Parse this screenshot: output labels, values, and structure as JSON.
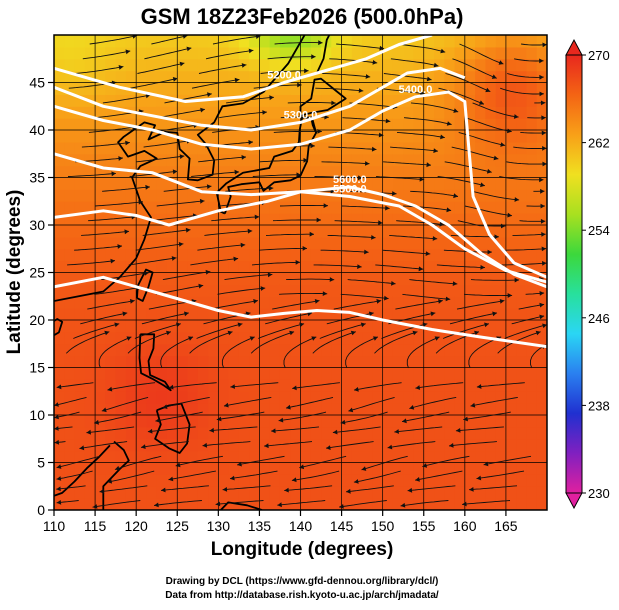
{
  "chart_data": {
    "type": "heatmap",
    "title": "GSM 18Z23Feb2026 (500.0hPa)",
    "xlabel": "Longitude (degrees)",
    "ylabel": "Latitude (degrees)",
    "xlim": [
      110,
      170
    ],
    "ylim": [
      0,
      50
    ],
    "x_ticks": [
      "110",
      "115",
      "120",
      "125",
      "130",
      "135",
      "140",
      "145",
      "150",
      "155",
      "160",
      "165"
    ],
    "y_ticks": [
      "0",
      "5",
      "10",
      "15",
      "20",
      "25",
      "30",
      "35",
      "40",
      "45"
    ],
    "x_tick_values": [
      110,
      115,
      120,
      125,
      130,
      135,
      140,
      145,
      150,
      155,
      160,
      165
    ],
    "y_tick_values": [
      0,
      5,
      10,
      15,
      20,
      25,
      30,
      35,
      40,
      45
    ],
    "colorbar": {
      "label_values": [
        "270",
        "262",
        "254",
        "246",
        "238",
        "230"
      ],
      "values": [
        270,
        262,
        254,
        246,
        238,
        230
      ],
      "min": 230,
      "max": 270,
      "colors": [
        "#e0209f",
        "#8020c0",
        "#2030d0",
        "#2a80f0",
        "#2ad6f4",
        "#28e09c",
        "#3cd83c",
        "#a8e020",
        "#f0e020",
        "#f8a018",
        "#f46414",
        "#e8281e"
      ]
    },
    "contours": [
      {
        "label": "5200.0",
        "points": [
          [
            110,
            46.5
          ],
          [
            118,
            44.5
          ],
          [
            126,
            43
          ],
          [
            133,
            43.5
          ],
          [
            138,
            45
          ],
          [
            144,
            46.5
          ],
          [
            148,
            47.5
          ],
          [
            152,
            49
          ],
          [
            156,
            50
          ]
        ]
      },
      {
        "label": "5300.0",
        "points": [
          [
            110,
            44.5
          ],
          [
            116,
            42.5
          ],
          [
            122,
            41.5
          ],
          [
            128,
            40.5
          ],
          [
            134,
            40
          ],
          [
            140,
            40.8
          ],
          [
            146,
            42.5
          ],
          [
            150,
            44.5
          ],
          [
            153,
            46
          ],
          [
            157,
            46.5
          ],
          [
            160,
            45.5
          ]
        ]
      },
      {
        "label": "5400.0",
        "points": [
          [
            110,
            42.5
          ],
          [
            116,
            41
          ],
          [
            122,
            40
          ],
          [
            128,
            38.5
          ],
          [
            134,
            38
          ],
          [
            140,
            38.5
          ],
          [
            146,
            40
          ],
          [
            150,
            42
          ],
          [
            154,
            43.5
          ],
          [
            158,
            44
          ],
          [
            160,
            43
          ],
          [
            160.5,
            38
          ],
          [
            161,
            33
          ],
          [
            163,
            29
          ],
          [
            166,
            26
          ],
          [
            170,
            24.5
          ]
        ]
      },
      {
        "label": "5500.0",
        "points": [
          [
            110,
            37.5
          ],
          [
            116,
            36
          ],
          [
            122,
            35.5
          ],
          [
            128,
            33.5
          ],
          [
            134,
            33.2
          ],
          [
            140,
            33.5
          ],
          [
            146,
            33
          ],
          [
            152,
            32
          ],
          [
            156,
            30
          ],
          [
            160,
            27.5
          ],
          [
            165,
            25.2
          ],
          [
            170,
            24
          ]
        ]
      },
      {
        "label": "5600.0",
        "points": [
          [
            110,
            30.8
          ],
          [
            116,
            31.5
          ],
          [
            120,
            31
          ],
          [
            124,
            30
          ],
          [
            130,
            31.5
          ],
          [
            136,
            32.5
          ],
          [
            140,
            33.5
          ],
          [
            146,
            34
          ],
          [
            150,
            33.2
          ],
          [
            154,
            32
          ],
          [
            158,
            30
          ],
          [
            162,
            27
          ],
          [
            166,
            24.8
          ],
          [
            170,
            23.5
          ]
        ]
      },
      {
        "label": "",
        "points": [
          [
            110,
            23.5
          ],
          [
            116,
            24.5
          ],
          [
            122,
            23
          ],
          [
            126,
            22
          ],
          [
            130,
            21
          ],
          [
            134,
            20.3
          ],
          [
            138,
            20.7
          ],
          [
            142,
            21
          ],
          [
            146,
            20.8
          ],
          [
            150,
            20
          ],
          [
            156,
            19
          ],
          [
            162,
            18.2
          ],
          [
            170,
            17.2
          ]
        ]
      }
    ],
    "annotation_lines": [
      "Drawing by DCL (https://www.gfd-dennou.org/library/dcl/)",
      "Data from http://database.rish.kyoto-u.ac.jp/arch/jmadata/"
    ]
  }
}
